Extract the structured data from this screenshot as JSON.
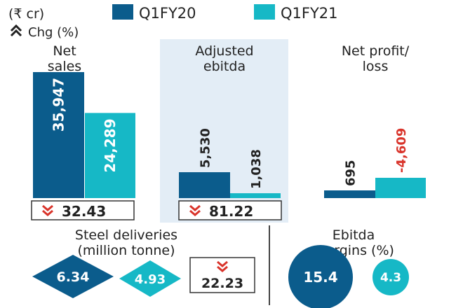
{
  "legend": {
    "unit": "(₹ cr)",
    "series_a": "Q1FY20",
    "series_b": "Q1FY21",
    "change_note": "Chg (%)",
    "color_a": "#0b5c8c",
    "color_b": "#16b8c6"
  },
  "chart_data": [
    {
      "type": "bar",
      "title": "Net sales",
      "categories": [
        "Q1FY20",
        "Q1FY21"
      ],
      "values": [
        35947,
        24289
      ],
      "value_labels": [
        "35,947",
        "24,289"
      ],
      "change_label": "32.43",
      "change_direction": "down"
    },
    {
      "type": "bar",
      "title": "Adjusted ebitda",
      "categories": [
        "Q1FY20",
        "Q1FY21"
      ],
      "values": [
        5530,
        1038
      ],
      "value_labels": [
        "5,530",
        "1,038"
      ],
      "change_label": "81.22",
      "change_direction": "down",
      "highlighted": true
    },
    {
      "type": "bar",
      "title": "Net profit/ loss",
      "categories": [
        "Q1FY20",
        "Q1FY21"
      ],
      "values": [
        695,
        -4609
      ],
      "value_labels": [
        "695",
        "-4,609"
      ],
      "negative_label_color": "#d9342b"
    }
  ],
  "steel": {
    "title_line1": "Steel deliveries",
    "title_line2": "(million tonne)",
    "q1fy20": "6.34",
    "q1fy21": "4.93",
    "change_label": "22.23",
    "change_direction": "down"
  },
  "margins": {
    "title_line1": "Ebitda",
    "title_line2": "margins (%)",
    "q1fy20": "15.4",
    "q1fy21": "4.3"
  }
}
